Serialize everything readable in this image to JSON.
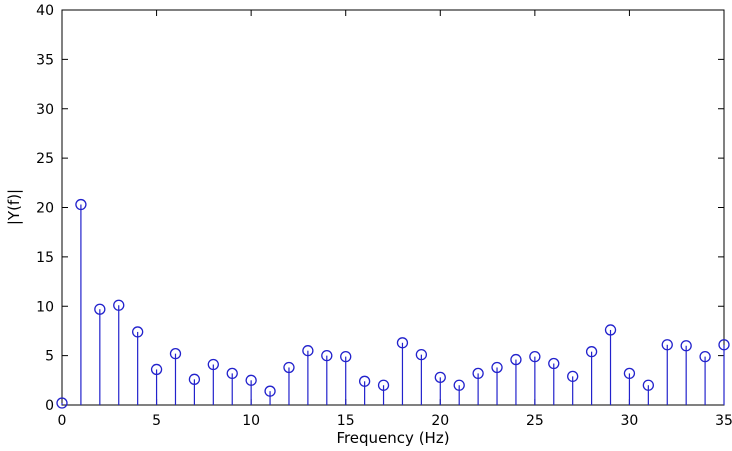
{
  "figure": {
    "background": "#ffffff",
    "axis_color": "#000000",
    "stem_color": "#2222cc"
  },
  "chart_data": {
    "type": "stem",
    "title": "",
    "xlabel": "Frequency (Hz)",
    "ylabel": "|Y(f)|",
    "xlim": [
      0,
      35
    ],
    "ylim": [
      0,
      40
    ],
    "xticks": [
      0,
      5,
      10,
      15,
      20,
      25,
      30,
      35
    ],
    "yticks": [
      0,
      5,
      10,
      15,
      20,
      25,
      30,
      35,
      40
    ],
    "grid": false,
    "legend": "none",
    "marker": "open-circle",
    "x": [
      0,
      1,
      2,
      3,
      4,
      5,
      6,
      7,
      8,
      9,
      10,
      11,
      12,
      13,
      14,
      15,
      16,
      17,
      18,
      19,
      20,
      21,
      22,
      23,
      24,
      25,
      26,
      27,
      28,
      29,
      30,
      31,
      32,
      33,
      34,
      35
    ],
    "values": [
      0.2,
      20.3,
      9.7,
      10.1,
      7.4,
      3.6,
      5.2,
      2.6,
      4.1,
      3.2,
      2.5,
      1.4,
      3.8,
      5.5,
      5.0,
      4.9,
      2.4,
      2.0,
      6.3,
      5.1,
      2.8,
      2.0,
      3.2,
      3.8,
      4.6,
      4.9,
      4.2,
      2.9,
      5.4,
      7.6,
      3.2,
      2.0,
      6.1,
      6.0,
      4.9,
      6.1
    ]
  }
}
